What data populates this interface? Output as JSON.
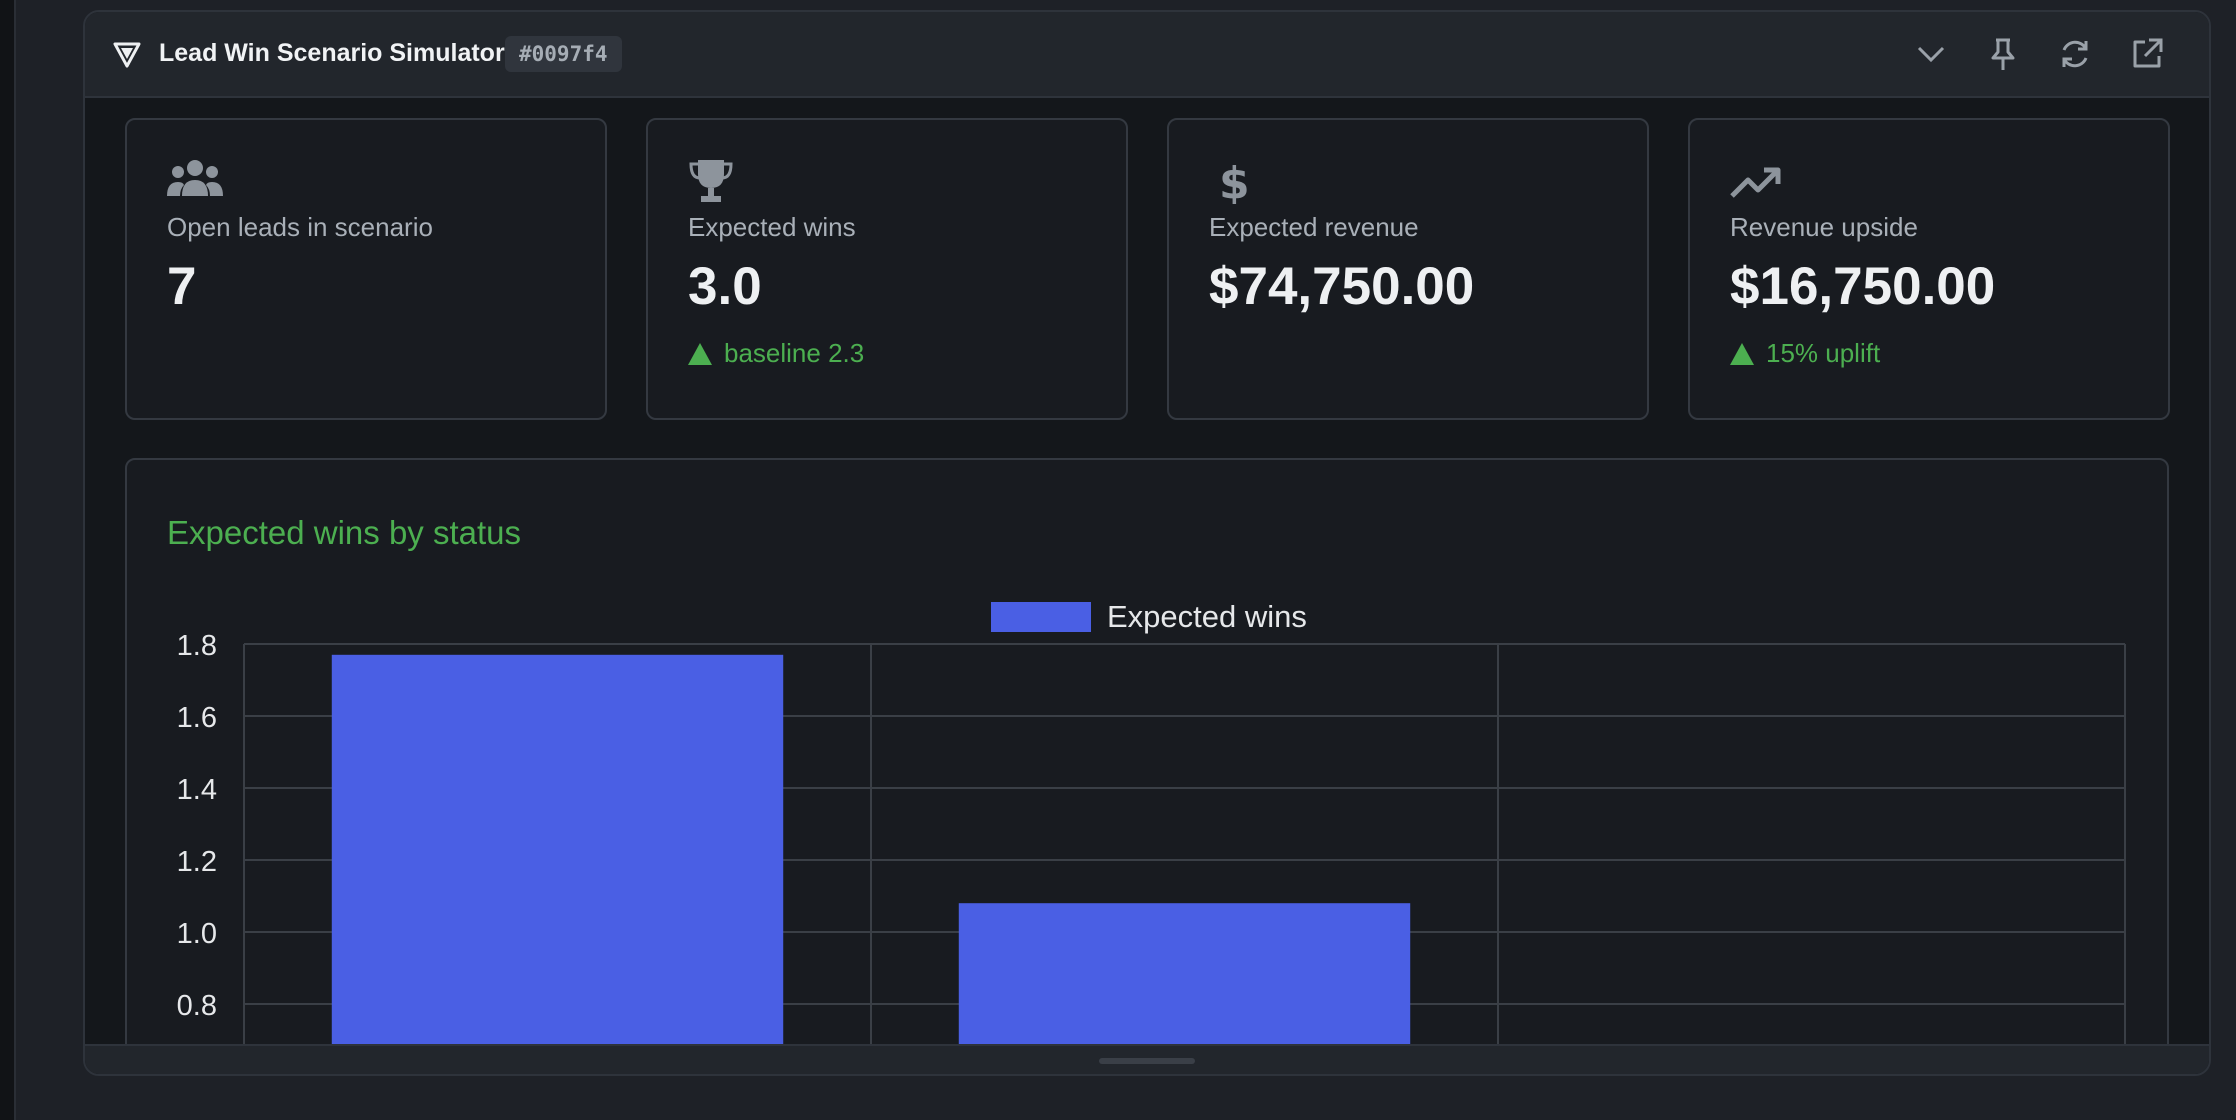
{
  "widget": {
    "title": "Lead Win Scenario Simulator",
    "id_badge": "#0097f4",
    "actions": [
      {
        "name": "collapse",
        "icon": "chevron-down-icon"
      },
      {
        "name": "pin",
        "icon": "pin-icon"
      },
      {
        "name": "refresh",
        "icon": "refresh-icon"
      },
      {
        "name": "open-external",
        "icon": "external-link-icon"
      }
    ]
  },
  "kpis": [
    {
      "icon": "users-icon",
      "label": "Open leads in scenario",
      "value": "7",
      "delta": ""
    },
    {
      "icon": "trophy-icon",
      "label": "Expected wins",
      "value": "3.0",
      "delta": "baseline 2.3"
    },
    {
      "icon": "dollar-icon",
      "label": "Expected revenue",
      "value": "$74,750.00",
      "delta": ""
    },
    {
      "icon": "trending-up-icon",
      "label": "Revenue upside",
      "value": "$16,750.00",
      "delta": "15% uplift"
    }
  ],
  "colors": {
    "accent_green": "#4caf50",
    "bar_blue": "#4a5fe4"
  },
  "chart_data": {
    "type": "bar",
    "title": "Expected wins by status",
    "categories": [
      "",
      "",
      ""
    ],
    "series": [
      {
        "name": "Expected wins",
        "values": [
          1.77,
          1.08,
          null
        ]
      }
    ],
    "yticks": [
      "1.8",
      "1.6",
      "1.4",
      "1.2",
      "1.0",
      "0.8"
    ],
    "ylim_visible": [
      0.7,
      1.8
    ],
    "grid": true,
    "legend": "top-center"
  }
}
